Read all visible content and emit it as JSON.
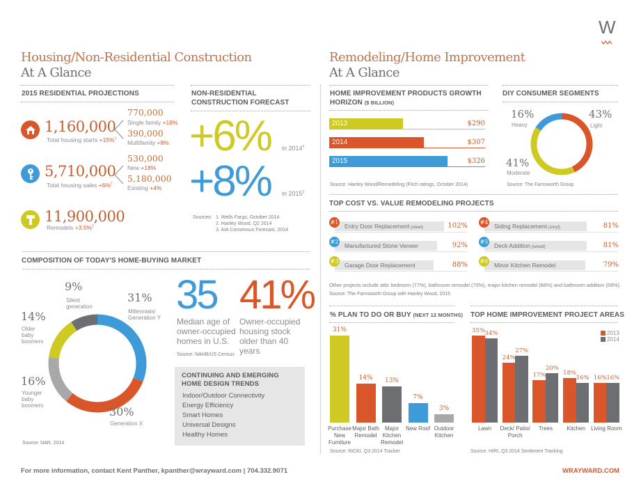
{
  "logo": {
    "letter": "W"
  },
  "left": {
    "title": "Housing/Non-Residential Construction",
    "subtitle": "At A Glance",
    "residential": {
      "header": "2015 RESIDENTIAL PROJECTIONS",
      "starts": {
        "value": "1,160,000",
        "label": "Total housing starts",
        "change": "+15%",
        "note": "1",
        "icon": "house-icon",
        "breakdown": [
          {
            "value": "770,000",
            "label": "Single family",
            "change": "+19%"
          },
          {
            "value": "390,000",
            "label": "Multifamily",
            "change": "+8%"
          }
        ]
      },
      "sales": {
        "value": "5,710,000",
        "label": "Total housing sales",
        "change": "+6%",
        "note": "1",
        "icon": "key-icon",
        "breakdown": [
          {
            "value": "530,000",
            "label": "New",
            "change": "+18%"
          },
          {
            "value": "5,180,000",
            "label": "Existing",
            "change": "+4%"
          }
        ]
      },
      "remodels": {
        "value": "11,900,000",
        "label": "Remodels",
        "change": "+3.5%",
        "note": "2",
        "icon": "hammer-icon"
      }
    },
    "nonres": {
      "header": "NON-RESIDENTIAL CONSTRUCTION FORECAST",
      "items": [
        {
          "value": "+6%",
          "label": "in 2014",
          "note": "3"
        },
        {
          "value": "+8%",
          "label": "in 2015",
          "note": "3"
        }
      ],
      "sources_label": "Sources:",
      "sources": [
        "1. Wells Fargo, October 2014",
        "2. Hanley Wood, Q2 2014",
        "3. AIA Consensus Forecast, 2014"
      ]
    },
    "market": {
      "header": "COMPOSITION OF TODAY'S HOME-BUYING MARKET",
      "source": "Source: NAR, 2014"
    },
    "stats": {
      "median_age": "35",
      "median_age_label": "Median age of owner-occupied homes in U.S.",
      "older_pct": "41%",
      "older_label": "Owner-occupied housing stock older than 40 years",
      "source": "Source: NAHB/US Census"
    },
    "trends": {
      "title": "CONTINUING AND EMERGING HOME DESIGN TRENDS",
      "items": [
        "Indoor/Outdoor Connectivity",
        "Energy Efficiency",
        "Smart Homes",
        "Universal Designs",
        "Healthy Homes"
      ]
    }
  },
  "right": {
    "title": "Remodeling/Home Improvement",
    "subtitle": "At A Glance",
    "products": {
      "header": "HOME IMPROVEMENT PRODUCTS GROWTH HORIZON",
      "header_unit": "($ BILLION)",
      "source": "Source: Hanley Wood/Remodeling (Fitch ratings, October 2014)"
    },
    "diy": {
      "header": "DIY CONSUMER SEGMENTS",
      "source": "Source: The Farnsworth Group"
    },
    "costvalue": {
      "header": "TOP COST VS. VALUE REMODELING PROJECTS",
      "items": [
        {
          "rank": "#1",
          "name": "Entry Door Replacement",
          "detail": "(steel)",
          "value": "102%",
          "color": "#d9562a"
        },
        {
          "rank": "#2",
          "name": "Manufactured Stone Veneer",
          "detail": "",
          "value": "92%",
          "color": "#3f9ad8"
        },
        {
          "rank": "#3",
          "name": "Garage Door Replacement",
          "detail": "",
          "value": "88%",
          "color": "#cfc923"
        },
        {
          "rank": "#4",
          "name": "Siding Replacement",
          "detail": "(vinyl)",
          "value": "81%",
          "color": "#d9562a"
        },
        {
          "rank": "#5",
          "name": "Deck Addition",
          "detail": "(wood)",
          "value": "81%",
          "color": "#3f9ad8"
        },
        {
          "rank": "#6",
          "name": "Minor Kitchen Remodel",
          "detail": "",
          "value": "79%",
          "color": "#cfc923"
        }
      ],
      "note": "Other projects include attic bedroom (77%), bathroom remodel (70%), major kitchen remodel (68%) and bathroom addition (58%).",
      "source": "Source: The Farnsworth Group with Hanley Wood, 2015"
    },
    "plan": {
      "header": "% PLAN TO DO OR BUY",
      "header_note": "(NEXT 12 MONTHS)",
      "source": "Source: RICKI, Q3 2014 Tracker"
    },
    "areas": {
      "header": "TOP HOME IMPROVEMENT PROJECT AREAS",
      "source": "Source: HIRI, Q3 2014 Sentiment Tracking"
    }
  },
  "footer": {
    "contact": "For more information, contact Kent Panther, kpanther@wrayward.com | 704.332.9071",
    "site": "WRAYWARD.COM"
  },
  "colors": {
    "orange": "#d9562a",
    "blue": "#3f9ad8",
    "yellow": "#cfc923",
    "dark_gray": "#6d6e71",
    "light_gray": "#a7a8aa",
    "title_orange": "#c0744a"
  },
  "chart_data": [
    {
      "type": "pie",
      "donut": true,
      "slices": [
        {
          "label": "Millennials/ Generation Y",
          "value": 31,
          "color": "#3f9ad8"
        },
        {
          "label": "Generation X",
          "value": 30,
          "color": "#d9562a"
        },
        {
          "label": "Younger baby boomers",
          "value": 16,
          "color": "#a7a8aa"
        },
        {
          "label": "Older baby boomers",
          "value": 14,
          "color": "#cfc923"
        },
        {
          "label": "Silent generation",
          "value": 9,
          "color": "#6d6e71"
        }
      ]
    },
    {
      "type": "bar",
      "orientation": "horizontal",
      "categories": [
        "2013",
        "2014",
        "2015"
      ],
      "values": [
        290,
        307,
        326
      ],
      "value_labels": [
        "$290",
        "$307",
        "$326"
      ],
      "colors": [
        "#cfc923",
        "#d9562a",
        "#3f9ad8"
      ]
    },
    {
      "type": "pie",
      "donut": true,
      "slices": [
        {
          "label": "Light",
          "value": 43,
          "color": "#d9562a"
        },
        {
          "label": "Moderate",
          "value": 41,
          "color": "#cfc923"
        },
        {
          "label": "Heavy",
          "value": 16,
          "color": "#3f9ad8"
        }
      ]
    },
    {
      "type": "bar",
      "categories": [
        "Purchase New Furniture",
        "Major Bath Remodel",
        "Major Kitchen Remodel",
        "New Roof",
        "Outdoor Kitchen"
      ],
      "values": [
        31,
        14,
        13,
        7,
        3
      ],
      "colors": [
        "#cfc923",
        "#d9562a",
        "#6d6e71",
        "#3f9ad8",
        "#a7a8aa"
      ],
      "ylim": [
        0,
        31
      ]
    },
    {
      "type": "bar",
      "categories": [
        "Lawn",
        "Deck/ Patio/ Porch",
        "Trees",
        "Kitchen",
        "Living Room"
      ],
      "series": [
        {
          "name": "2013",
          "values": [
            35,
            24,
            17,
            18,
            16
          ],
          "color": "#d9562a"
        },
        {
          "name": "2014",
          "values": [
            34,
            27,
            20,
            16,
            16
          ],
          "color": "#6d6e71"
        }
      ],
      "legend": "top-right",
      "ylim": [
        0,
        35
      ]
    }
  ]
}
